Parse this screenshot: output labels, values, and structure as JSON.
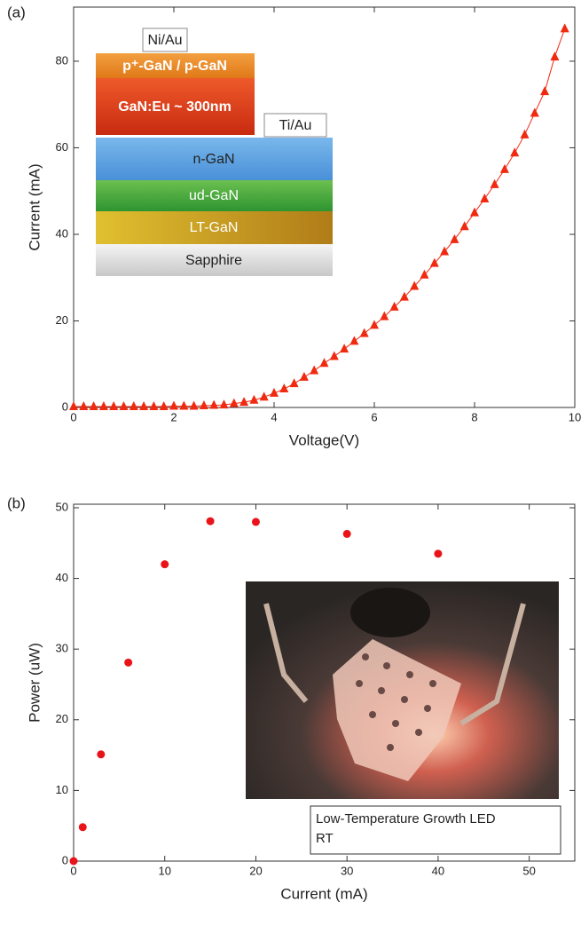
{
  "chart_data": [
    {
      "type": "line",
      "panel": "(a)",
      "xlabel": "Voltage(V)",
      "ylabel": "Current (mA)",
      "x": [
        0,
        0.2,
        0.4,
        0.6,
        0.8,
        1.0,
        1.2,
        1.4,
        1.6,
        1.8,
        2.0,
        2.2,
        2.4,
        2.6,
        2.8,
        3.0,
        3.2,
        3.4,
        3.6,
        3.8,
        4.0,
        4.2,
        4.4,
        4.6,
        4.8,
        5.0,
        5.2,
        5.4,
        5.6,
        5.8,
        6.0,
        6.2,
        6.4,
        6.6,
        6.8,
        7.0,
        7.2,
        7.4,
        7.6,
        7.8,
        8.0,
        8.2,
        8.4,
        8.6,
        8.8,
        9.0,
        9.2,
        9.4,
        9.6,
        9.8
      ],
      "series": [
        {
          "color": "#f02a10",
          "values": [
            0.2,
            0.2,
            0.2,
            0.2,
            0.2,
            0.2,
            0.2,
            0.2,
            0.2,
            0.2,
            0.3,
            0.3,
            0.3,
            0.4,
            0.5,
            0.6,
            0.9,
            1.2,
            1.7,
            2.4,
            3.3,
            4.3,
            5.5,
            7.0,
            8.5,
            10.2,
            11.8,
            13.5,
            15.3,
            17.1,
            19.0,
            21.0,
            23.2,
            25.5,
            28.0,
            30.6,
            33.3,
            36.0,
            38.8,
            41.8,
            45.0,
            48.2,
            51.5,
            55.0,
            58.8,
            63.0,
            68.0,
            73.0,
            81.0,
            87.5
          ]
        }
      ],
      "xlim": [
        0,
        10
      ],
      "xticks": [
        0,
        2,
        4,
        6,
        8,
        10
      ],
      "ylim": [
        0,
        92.5
      ],
      "yticks": [
        0,
        20,
        40,
        60,
        80
      ],
      "annotations": {
        "contacts": [
          "Ni/Au",
          "Ti/Au"
        ],
        "layers": [
          "p⁺-GaN / p-GaN",
          "GaN:Eu ~ 300nm",
          "n-GaN",
          "ud-GaN",
          "LT-GaN",
          "Sapphire"
        ]
      }
    },
    {
      "type": "scatter",
      "panel": "(b)",
      "xlabel": "Current (mA)",
      "ylabel": "Power (uW)",
      "x": [
        0,
        1,
        3,
        6,
        10,
        15,
        20,
        30,
        40
      ],
      "series": [
        {
          "color": "#e8141a",
          "values": [
            0,
            4.8,
            15.1,
            28.1,
            42,
            48.1,
            48,
            46.3,
            43.5
          ]
        }
      ],
      "xlim": [
        0,
        55
      ],
      "xticks": [
        0,
        10,
        20,
        30,
        40,
        50
      ],
      "ylim": [
        0,
        50.5
      ],
      "yticks": [
        0,
        10,
        20,
        30,
        40,
        50
      ],
      "annotations": {
        "note": [
          "Low-Temperature Growth LED",
          "RT"
        ]
      }
    }
  ]
}
